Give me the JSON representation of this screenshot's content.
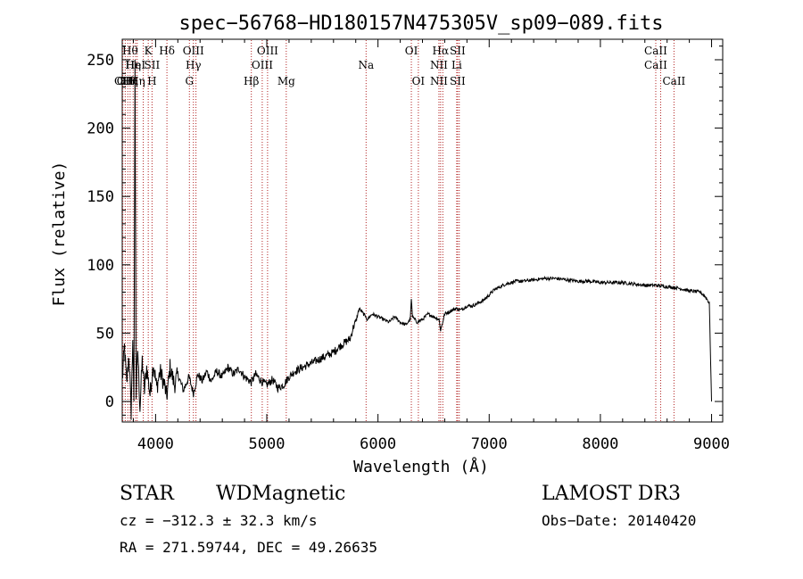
{
  "chart_data": {
    "type": "line",
    "title": "spec−56768−HD180157N475305V_sp09−089.fits",
    "xlabel": "Wavelength (Å)",
    "ylabel": "Flux (relative)",
    "xlim": [
      3700,
      9100
    ],
    "ylim": [
      -15,
      265
    ],
    "x_ticks": [
      4000,
      5000,
      6000,
      7000,
      8000,
      9000
    ],
    "y_ticks": [
      0,
      50,
      100,
      150,
      200,
      250
    ],
    "grid": false,
    "series": [
      {
        "values": [
          [
            3700,
            15
          ],
          [
            3720,
            40
          ],
          [
            3740,
            12
          ],
          [
            3760,
            35
          ],
          [
            3780,
            -8
          ],
          [
            3795,
            45
          ],
          [
            3805,
            0
          ],
          [
            3815,
            250
          ],
          [
            3825,
            5
          ],
          [
            3840,
            38
          ],
          [
            3860,
            -5
          ],
          [
            3880,
            30
          ],
          [
            3900,
            8
          ],
          [
            3920,
            25
          ],
          [
            3950,
            5
          ],
          [
            3980,
            28
          ],
          [
            4010,
            10
          ],
          [
            4040,
            22
          ],
          [
            4080,
            12
          ],
          [
            4100,
            3
          ],
          [
            4130,
            25
          ],
          [
            4170,
            12
          ],
          [
            4200,
            20
          ],
          [
            4250,
            8
          ],
          [
            4300,
            18
          ],
          [
            4340,
            6
          ],
          [
            4380,
            20
          ],
          [
            4420,
            15
          ],
          [
            4460,
            22
          ],
          [
            4500,
            15
          ],
          [
            4550,
            22
          ],
          [
            4600,
            18
          ],
          [
            4650,
            25
          ],
          [
            4700,
            20
          ],
          [
            4750,
            24
          ],
          [
            4800,
            18
          ],
          [
            4860,
            14
          ],
          [
            4900,
            20
          ],
          [
            4950,
            15
          ],
          [
            5000,
            12
          ],
          [
            5050,
            16
          ],
          [
            5100,
            10
          ],
          [
            5150,
            12
          ],
          [
            5200,
            18
          ],
          [
            5250,
            22
          ],
          [
            5300,
            24
          ],
          [
            5350,
            26
          ],
          [
            5400,
            28
          ],
          [
            5450,
            30
          ],
          [
            5500,
            32
          ],
          [
            5550,
            34
          ],
          [
            5600,
            36
          ],
          [
            5650,
            40
          ],
          [
            5700,
            43
          ],
          [
            5750,
            46
          ],
          [
            5780,
            55
          ],
          [
            5800,
            58
          ],
          [
            5830,
            68
          ],
          [
            5860,
            65
          ],
          [
            5890,
            62
          ],
          [
            5900,
            60
          ],
          [
            5950,
            64
          ],
          [
            6000,
            62
          ],
          [
            6050,
            60
          ],
          [
            6100,
            58
          ],
          [
            6150,
            62
          ],
          [
            6200,
            58
          ],
          [
            6250,
            56
          ],
          [
            6290,
            60
          ],
          [
            6300,
            75
          ],
          [
            6310,
            62
          ],
          [
            6350,
            58
          ],
          [
            6400,
            60
          ],
          [
            6450,
            64
          ],
          [
            6500,
            62
          ],
          [
            6550,
            60
          ],
          [
            6563,
            52
          ],
          [
            6600,
            64
          ],
          [
            6650,
            66
          ],
          [
            6700,
            68
          ],
          [
            6750,
            67
          ],
          [
            6800,
            70
          ],
          [
            6850,
            70
          ],
          [
            6900,
            72
          ],
          [
            6950,
            74
          ],
          [
            7000,
            78
          ],
          [
            7050,
            82
          ],
          [
            7100,
            84
          ],
          [
            7150,
            86
          ],
          [
            7200,
            87
          ],
          [
            7250,
            88
          ],
          [
            7300,
            88
          ],
          [
            7400,
            89
          ],
          [
            7500,
            90
          ],
          [
            7600,
            90
          ],
          [
            7700,
            89
          ],
          [
            7800,
            88
          ],
          [
            7900,
            88
          ],
          [
            8000,
            87
          ],
          [
            8100,
            87
          ],
          [
            8200,
            87
          ],
          [
            8300,
            86
          ],
          [
            8400,
            85
          ],
          [
            8500,
            85
          ],
          [
            8600,
            84
          ],
          [
            8700,
            83
          ],
          [
            8800,
            81
          ],
          [
            8900,
            80
          ],
          [
            8950,
            76
          ],
          [
            8980,
            72
          ],
          [
            9000,
            0
          ]
        ]
      }
    ],
    "lines": [
      {
        "wl": 3705,
        "labels": [
          {
            "t": "OII",
            "r": 2
          }
        ]
      },
      {
        "wl": 3727,
        "labels": [
          {
            "t": "OII",
            "r": 2
          }
        ]
      },
      {
        "wl": 3750,
        "labels": [
          {
            "t": "Hθ",
            "r": 2
          }
        ]
      },
      {
        "wl": 3771,
        "labels": [
          {
            "t": "Hθ",
            "r": 0
          },
          {
            "t": "Hη",
            "r": 2
          }
        ]
      },
      {
        "wl": 3798,
        "labels": [
          {
            "t": "Hη",
            "r": 1
          }
        ]
      },
      {
        "wl": 3820,
        "labels": [
          {
            "t": "HeI",
            "r": 1
          }
        ]
      },
      {
        "wl": 3835,
        "labels": [
          {
            "t": "Hη",
            "r": 2
          }
        ]
      },
      {
        "wl": 3889,
        "labels": []
      },
      {
        "wl": 3934,
        "labels": [
          {
            "t": "K",
            "r": 0
          }
        ]
      },
      {
        "wl": 3968,
        "labels": [
          {
            "t": "SII",
            "r": 1
          },
          {
            "t": "H",
            "r": 2
          }
        ]
      },
      {
        "wl": 4102,
        "labels": [
          {
            "t": "Hδ",
            "r": 0
          }
        ]
      },
      {
        "wl": 4304,
        "labels": [
          {
            "t": "G",
            "r": 2
          }
        ]
      },
      {
        "wl": 4340,
        "labels": [
          {
            "t": "OIII",
            "r": 0
          },
          {
            "t": "Hγ",
            "r": 1
          }
        ]
      },
      {
        "wl": 4363,
        "labels": []
      },
      {
        "wl": 4861,
        "labels": [
          {
            "t": "Hβ",
            "r": 2
          }
        ]
      },
      {
        "wl": 4959,
        "labels": [
          {
            "t": "OIII",
            "r": 1
          }
        ]
      },
      {
        "wl": 5007,
        "labels": [
          {
            "t": "OIII",
            "r": 0
          }
        ]
      },
      {
        "wl": 5175,
        "labels": [
          {
            "t": "Mg",
            "r": 2
          }
        ]
      },
      {
        "wl": 5893,
        "labels": [
          {
            "t": "Na",
            "r": 1
          }
        ]
      },
      {
        "wl": 6300,
        "labels": [
          {
            "t": "OI",
            "r": 0
          }
        ]
      },
      {
        "wl": 6363,
        "labels": [
          {
            "t": "OI",
            "r": 2
          }
        ]
      },
      {
        "wl": 6548,
        "labels": [
          {
            "t": "NII",
            "r": 1
          },
          {
            "t": "NII",
            "r": 2
          }
        ]
      },
      {
        "wl": 6563,
        "labels": [
          {
            "t": "Hα",
            "r": 0
          }
        ]
      },
      {
        "wl": 6583,
        "labels": []
      },
      {
        "wl": 6708,
        "labels": [
          {
            "t": "Li",
            "r": 1
          }
        ]
      },
      {
        "wl": 6716,
        "labels": [
          {
            "t": "SII",
            "r": 0
          },
          {
            "t": "SII",
            "r": 2
          }
        ]
      },
      {
        "wl": 6731,
        "labels": []
      },
      {
        "wl": 8498,
        "labels": [
          {
            "t": "CaII",
            "r": 0
          },
          {
            "t": "CaII",
            "r": 1
          }
        ]
      },
      {
        "wl": 8542,
        "labels": []
      },
      {
        "wl": 8662,
        "labels": [
          {
            "t": "CaII",
            "r": 2
          }
        ]
      }
    ]
  },
  "info": {
    "class": "STAR",
    "subclass": "WDMagnetic",
    "survey": "LAMOST DR3",
    "cz": "cz = −312.3 ± 32.3 km/s",
    "obs_date": "Obs−Date: 20140420",
    "radec": "RA = 271.59744, DEC =  49.26635"
  },
  "colors": {
    "line": "#000000",
    "marker": "#b22222"
  }
}
